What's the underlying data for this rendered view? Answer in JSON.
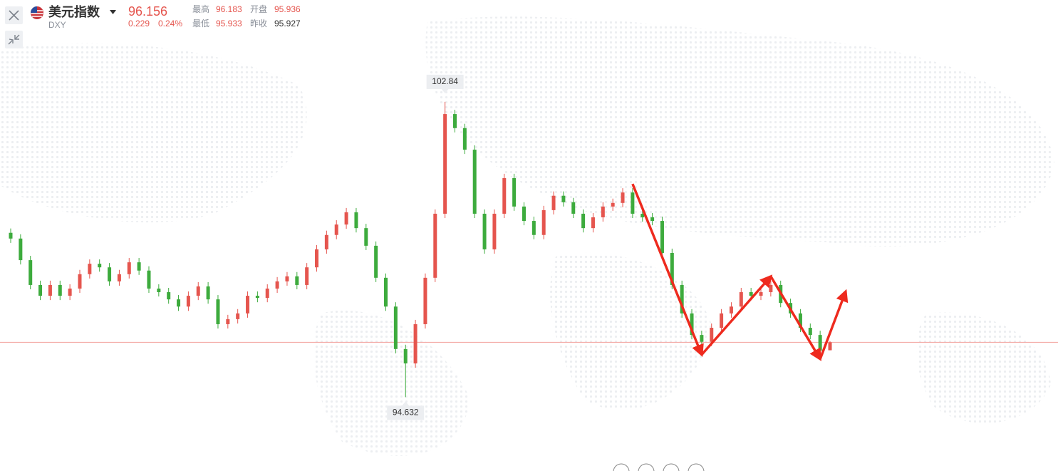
{
  "header": {
    "name": "美元指数",
    "code": "DXY",
    "price": 96.156,
    "change": 0.229,
    "change_pct": "0.24%",
    "stats": [
      {
        "label": "最高",
        "value": 96.183
      },
      {
        "label": "开盘",
        "value": 95.936
      },
      {
        "label": "最低",
        "value": 95.933
      },
      {
        "label": "昨收",
        "value": 95.927
      }
    ]
  },
  "chart_data": {
    "type": "candlestick",
    "up_color": "#e5554e",
    "down_color": "#3dab3d",
    "ylim": [
      92.58,
      105.67
    ],
    "high_marker": 102.84,
    "low_marker": 94.632,
    "open": [
      99.2,
      99.04,
      98.44,
      97.75,
      97.45,
      97.75,
      97.45,
      97.65,
      98.05,
      98.34,
      98.24,
      97.85,
      98.05,
      98.38,
      98.15,
      97.65,
      97.55,
      97.35,
      97.15,
      97.45,
      97.71,
      97.35,
      96.66,
      96.8,
      96.96,
      97.45,
      97.39,
      97.65,
      97.85,
      97.99,
      97.75,
      98.24,
      98.74,
      99.14,
      99.43,
      99.77,
      99.33,
      98.84,
      97.95,
      97.15,
      95.97,
      95.57,
      96.66,
      97.95,
      99.73,
      102.5,
      102.11,
      101.51,
      99.73,
      98.74,
      99.73,
      100.72,
      99.93,
      99.53,
      99.14,
      99.83,
      100.23,
      100.05,
      99.73,
      99.33,
      99.63,
      99.93,
      100.03,
      100.32,
      99.73,
      99.63,
      99.53,
      98.64,
      97.75,
      96.96,
      96.36,
      96.17,
      96.56,
      96.96,
      97.15,
      97.55,
      97.45,
      97.55,
      97.75,
      97.25,
      96.96,
      96.56,
      96.36,
      95.936
    ],
    "high": [
      99.32,
      99.16,
      98.56,
      97.87,
      97.87,
      97.87,
      97.77,
      98.17,
      98.46,
      98.46,
      98.36,
      98.17,
      98.5,
      98.5,
      98.27,
      97.77,
      97.67,
      97.47,
      97.57,
      97.83,
      97.83,
      97.47,
      96.92,
      97.08,
      97.57,
      97.57,
      97.77,
      97.97,
      98.11,
      98.11,
      98.36,
      98.86,
      99.26,
      99.55,
      99.89,
      99.89,
      99.45,
      98.96,
      98.07,
      97.27,
      96.09,
      96.78,
      98.07,
      99.85,
      102.84,
      102.62,
      102.23,
      101.63,
      99.85,
      99.85,
      100.84,
      100.84,
      100.05,
      99.65,
      99.95,
      100.35,
      100.35,
      100.17,
      99.85,
      99.75,
      100.05,
      100.15,
      100.44,
      100.44,
      99.85,
      99.75,
      99.65,
      98.76,
      97.87,
      97.08,
      96.48,
      96.68,
      97.08,
      97.27,
      97.67,
      97.67,
      97.67,
      97.87,
      97.87,
      97.37,
      97.08,
      96.68,
      96.48,
      96.183
    ],
    "low": [
      98.92,
      98.32,
      97.63,
      97.33,
      97.33,
      97.33,
      97.33,
      97.53,
      97.93,
      98.12,
      97.73,
      97.73,
      97.93,
      98.03,
      97.53,
      97.43,
      97.23,
      97.03,
      97.03,
      97.33,
      97.23,
      96.54,
      96.54,
      96.68,
      96.84,
      97.27,
      97.27,
      97.53,
      97.73,
      97.63,
      97.63,
      98.12,
      98.62,
      99.02,
      99.31,
      99.21,
      98.72,
      97.83,
      97.03,
      95.85,
      94.632,
      95.45,
      96.54,
      97.83,
      99.61,
      101.99,
      101.39,
      99.61,
      98.62,
      98.62,
      99.61,
      99.81,
      99.41,
      99.02,
      99.02,
      99.71,
      99.93,
      99.61,
      99.21,
      99.21,
      99.51,
      99.81,
      99.91,
      99.61,
      99.51,
      99.41,
      98.52,
      97.63,
      96.84,
      96.24,
      96.05,
      96.05,
      96.44,
      96.84,
      97.03,
      97.33,
      97.33,
      97.43,
      97.13,
      96.84,
      96.44,
      96.24,
      95.81,
      95.933
    ],
    "close": [
      99.04,
      98.44,
      97.75,
      97.45,
      97.75,
      97.45,
      97.65,
      98.05,
      98.34,
      98.24,
      97.85,
      98.05,
      98.38,
      98.15,
      97.65,
      97.55,
      97.35,
      97.15,
      97.45,
      97.71,
      97.35,
      96.66,
      96.8,
      96.96,
      97.45,
      97.39,
      97.65,
      97.85,
      97.99,
      97.75,
      98.24,
      98.74,
      99.14,
      99.43,
      99.77,
      99.33,
      98.84,
      97.95,
      97.15,
      95.97,
      95.57,
      96.66,
      97.95,
      99.73,
      102.5,
      102.11,
      101.51,
      99.73,
      98.74,
      99.73,
      100.72,
      99.93,
      99.53,
      99.14,
      99.83,
      100.23,
      100.05,
      99.73,
      99.33,
      99.63,
      99.93,
      100.03,
      100.32,
      99.73,
      99.63,
      99.53,
      98.64,
      97.75,
      96.96,
      96.36,
      96.17,
      96.56,
      96.96,
      97.15,
      97.55,
      97.45,
      97.55,
      97.75,
      97.25,
      96.96,
      96.56,
      96.36,
      95.927,
      96.156
    ]
  }
}
